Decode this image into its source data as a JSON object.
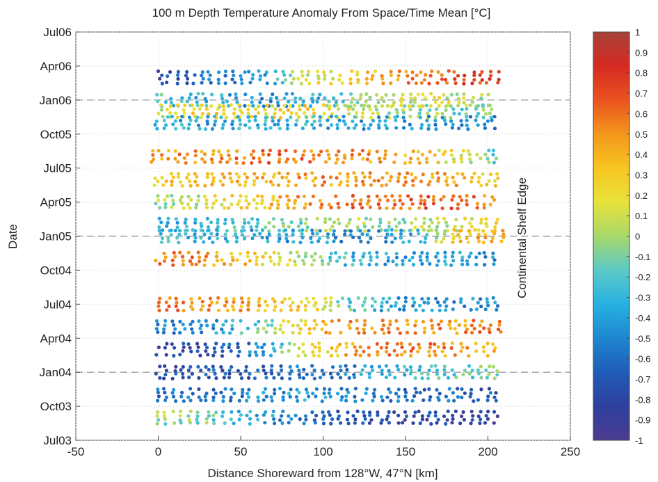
{
  "chart_data": {
    "type": "scatter",
    "title": "100 m Depth Temperature Anomaly From Space/Time Mean [°C]",
    "xlabel": "Distance Shoreward from 128°W, 47°N [km]",
    "ylabel": "Date",
    "xlim": [
      -50,
      250
    ],
    "xticks": [
      "-50",
      "0",
      "50",
      "100",
      "150",
      "200",
      "250"
    ],
    "ylim": [
      "Jul03",
      "Jul06"
    ],
    "yticks": [
      "Jul03",
      "Oct03",
      "Jan04",
      "Apr04",
      "Jul04",
      "Oct04",
      "Jan05",
      "Apr05",
      "Jul05",
      "Oct05",
      "Jan06",
      "Apr06",
      "Jul06"
    ],
    "dashed_lines_at": [
      "Jan04",
      "Jan05",
      "Jan06"
    ],
    "grid": true,
    "colorbar": {
      "min": -1,
      "max": 1,
      "ticks": [
        "1",
        "0.9",
        "0.8",
        "0.7",
        "0.6",
        "0.5",
        "0.4",
        "0.3",
        "0.2",
        "0.1",
        "0",
        "-0.1",
        "-0.2",
        "-0.3",
        "-0.4",
        "-0.5",
        "-0.6",
        "-0.7",
        "-0.8",
        "-0.9",
        "-1"
      ],
      "colormap": [
        "#4b3c8f",
        "#2e3f9e",
        "#1f5cb8",
        "#1e86d0",
        "#27b1e0",
        "#5cc9c6",
        "#a8d86a",
        "#e8e23a",
        "#f7c520",
        "#f3961c",
        "#ea5320",
        "#d52a22",
        "#a8433a"
      ]
    },
    "annotation": "Continental Shelf Edge",
    "transects": [
      {
        "date": "Mar06",
        "x_start": 0,
        "x_end": 209,
        "anomaly_by_distance": [
          -0.8,
          -0.6,
          -0.5,
          0.1,
          0.3,
          0.5,
          0.7,
          0.8
        ]
      },
      {
        "date": "Jan06",
        "x_start": -3,
        "x_end": 205,
        "anomaly_by_distance": [
          -0.2,
          -0.3,
          -0.5,
          -0.4,
          -0.1,
          0.1,
          0.1,
          0.0
        ]
      },
      {
        "date": "Dec05",
        "x_start": 0,
        "x_end": 206,
        "anomaly_by_distance": [
          0.1,
          0.3,
          0.2,
          0.3,
          0.1,
          0.0,
          -0.1,
          -0.1
        ]
      },
      {
        "date": "Nov05",
        "x_start": -2,
        "x_end": 207,
        "anomaly_by_distance": [
          -0.3,
          -0.4,
          -0.3,
          -0.3,
          -0.4,
          -0.4,
          -0.5,
          -0.5
        ]
      },
      {
        "date": "Aug05",
        "x_start": -5,
        "x_end": 208,
        "anomaly_by_distance": [
          0.5,
          0.5,
          0.6,
          0.6,
          0.5,
          0.4,
          0.2,
          -0.2
        ]
      },
      {
        "date": "Jun05",
        "x_start": -3,
        "x_end": 209,
        "anomaly_by_distance": [
          0.3,
          0.3,
          0.4,
          0.5,
          0.5,
          0.5,
          0.4,
          0.2
        ]
      },
      {
        "date": "Apr05",
        "x_start": -2,
        "x_end": 206,
        "anomaly_by_distance": [
          0.0,
          0.1,
          0.3,
          0.5,
          0.6,
          0.6,
          0.7,
          0.5
        ]
      },
      {
        "date": "Feb05",
        "x_start": 0,
        "x_end": 208,
        "anomaly_by_distance": [
          -0.3,
          -0.3,
          -0.2,
          -0.1,
          0.0,
          0.0,
          0.1,
          0.3
        ]
      },
      {
        "date": "Jan05",
        "x_start": 0,
        "x_end": 212,
        "anomaly_by_distance": [
          -0.3,
          -0.3,
          -0.4,
          -0.4,
          -0.5,
          -0.4,
          0.3,
          0.5
        ]
      },
      {
        "date": "Nov04",
        "x_start": -2,
        "x_end": 207,
        "anomaly_by_distance": [
          0.6,
          0.5,
          0.3,
          0.0,
          -0.3,
          -0.4,
          -0.3,
          -0.5
        ]
      },
      {
        "date": "Jul04",
        "x_start": 0,
        "x_end": 208,
        "anomaly_by_distance": [
          0.6,
          0.5,
          0.4,
          0.3,
          -0.2,
          -0.4,
          -0.5,
          -0.5
        ]
      },
      {
        "date": "May04",
        "x_start": -2,
        "x_end": 210,
        "anomaly_by_distance": [
          -0.5,
          -0.5,
          -0.2,
          0.3,
          0.5,
          0.5,
          0.5,
          0.6
        ]
      },
      {
        "date": "Mar04",
        "x_start": -2,
        "x_end": 207,
        "anomaly_by_distance": [
          -0.8,
          -0.8,
          -0.5,
          0.1,
          0.4,
          0.6,
          0.5,
          0.4
        ]
      },
      {
        "date": "Jan04",
        "x_start": -2,
        "x_end": 208,
        "anomaly_by_distance": [
          -0.8,
          -0.7,
          -0.7,
          -0.6,
          -0.5,
          -0.3,
          -0.2,
          -0.1
        ]
      },
      {
        "date": "Nov03",
        "x_start": -2,
        "x_end": 209,
        "anomaly_by_distance": [
          -0.6,
          -0.6,
          -0.5,
          -0.4,
          -0.5,
          -0.6,
          -0.6,
          -0.7
        ]
      },
      {
        "date": "Sep03",
        "x_start": -2,
        "x_end": 208,
        "anomaly_by_distance": [
          0.0,
          -0.1,
          -0.4,
          -0.6,
          -0.7,
          -0.8,
          -0.8,
          -0.9
        ]
      }
    ]
  }
}
